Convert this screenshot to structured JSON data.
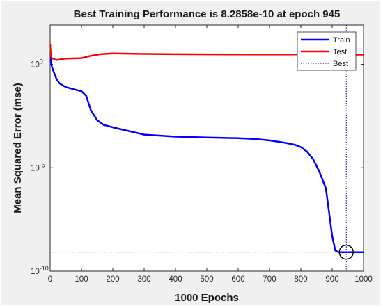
{
  "chart_data": {
    "type": "line",
    "title": "Best Training Performance is 8.2858e-10 at epoch 945",
    "xlabel": "1000 Epochs",
    "ylabel": "Mean Squared Error  (mse)",
    "xlim": [
      0,
      1000
    ],
    "ylim_log10": [
      -10,
      1.9
    ],
    "y_scale": "log",
    "x_ticks": [
      0,
      100,
      200,
      300,
      400,
      500,
      600,
      700,
      800,
      900,
      1000
    ],
    "y_ticks": [
      {
        "value": 1,
        "label": "10",
        "exp": "0"
      },
      {
        "value": 1e-05,
        "label": "10",
        "exp": "-5"
      },
      {
        "value": 1e-10,
        "label": "10",
        "exp": "-10"
      }
    ],
    "grid": false,
    "legend_position": "top-right",
    "series": [
      {
        "name": "Train",
        "color": "#0000ff",
        "style": "solid",
        "x": [
          0,
          2,
          5,
          10,
          20,
          30,
          50,
          80,
          100,
          115,
          130,
          150,
          170,
          200,
          250,
          300,
          400,
          500,
          600,
          650,
          700,
          750,
          780,
          800,
          820,
          840,
          860,
          880,
          900,
          910,
          920,
          930,
          940,
          945,
          960,
          980,
          1000
        ],
        "y": [
          5,
          2,
          0.8,
          0.5,
          0.2,
          0.12,
          0.08,
          0.06,
          0.05,
          0.03,
          0.006,
          0.002,
          0.0012,
          0.0009,
          0.0006,
          0.0004,
          0.00032,
          0.00029,
          0.00027,
          0.00025,
          0.00021,
          0.00016,
          0.00013,
          0.0001,
          6e-05,
          2.5e-05,
          6e-06,
          1e-06,
          5e-09,
          1e-09,
          8.3e-10,
          8.3e-10,
          8.3e-10,
          8.2858e-10,
          8.3e-10,
          8.3e-10,
          8.3e-10
        ]
      },
      {
        "name": "Test",
        "color": "#ff0000",
        "style": "solid",
        "x": [
          0,
          2,
          5,
          20,
          50,
          100,
          130,
          160,
          200,
          300,
          400,
          500,
          600,
          700,
          800,
          900,
          1000
        ],
        "y": [
          10,
          3,
          2,
          1.6,
          1.9,
          2.0,
          2.6,
          3.1,
          3.4,
          3.2,
          3.1,
          3.05,
          3.0,
          3.0,
          3.0,
          2.95,
          2.95
        ]
      },
      {
        "name": "Best",
        "color": "#0000aa",
        "style": "dotted",
        "best_epoch": 945,
        "best_value": 8.2858e-10
      }
    ]
  }
}
